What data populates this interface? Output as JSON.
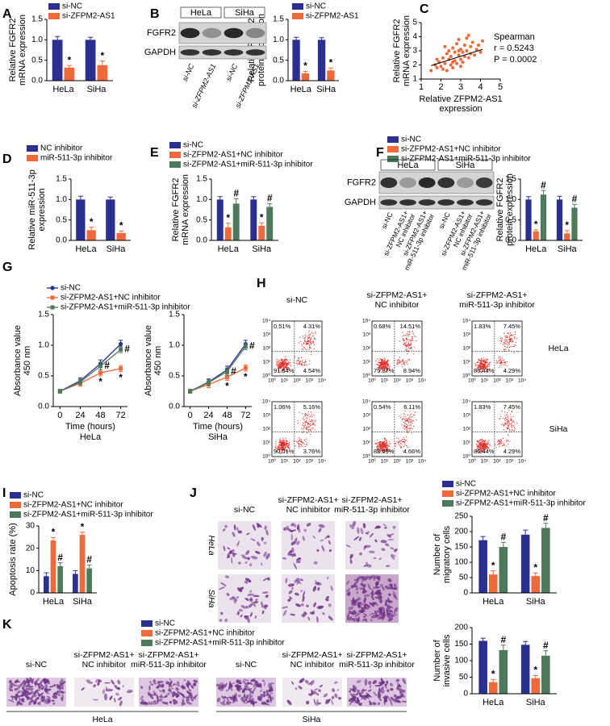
{
  "chart_data": [
    {
      "type": "bar",
      "panel": "A",
      "ylabel": "Relative FGFR2\nmRNA expression",
      "categories": [
        "HeLa",
        "SiHa"
      ],
      "series": [
        {
          "name": "si-NC",
          "color": "#2b2f8f",
          "values": [
            1.0,
            1.0
          ],
          "errors": [
            0.08,
            0.06
          ]
        },
        {
          "name": "si-ZFPM2-AS1",
          "color": "#f0693a",
          "values": [
            0.32,
            0.38
          ],
          "errors": [
            0.05,
            0.1
          ],
          "marks": [
            "*",
            "*"
          ]
        }
      ],
      "ylim": [
        0,
        1.5
      ],
      "yticks": [
        {
          "value": 0,
          "label": "0.0"
        },
        0.5,
        {
          "value": 1,
          "label": "1.0"
        },
        1.5
      ]
    },
    {
      "type": "bar",
      "panel": "B",
      "ylabel": "Relative FGFR2\nprotein expression",
      "categories": [
        "HeLa",
        "SiHa"
      ],
      "series": [
        {
          "name": "si-NC",
          "color": "#2b2f8f",
          "values": [
            1.0,
            1.0
          ],
          "errors": [
            0.06,
            0.05
          ]
        },
        {
          "name": "si-ZFPM2-AS1",
          "color": "#f0693a",
          "values": [
            0.18,
            0.25
          ],
          "errors": [
            0.05,
            0.06
          ],
          "marks": [
            "*",
            "*"
          ]
        }
      ],
      "ylim": [
        0,
        1.5
      ],
      "yticks": [
        {
          "value": 0,
          "label": "0.0"
        },
        0.5,
        {
          "value": 1,
          "label": "1.0"
        },
        1.5
      ]
    },
    {
      "type": "scatter",
      "panel": "C",
      "xlabel": "Relative ZFPM2-AS1\nexpression",
      "ylabel": "Relative FGFR2\nmRNA expression",
      "color": "#f0693a",
      "x": [
        1.5,
        1.7,
        1.8,
        1.9,
        2.0,
        2.1,
        2.1,
        2.2,
        2.3,
        2.3,
        2.4,
        2.4,
        2.5,
        2.5,
        2.6,
        2.6,
        2.7,
        2.7,
        2.8,
        2.8,
        2.9,
        2.9,
        3.0,
        3.0,
        3.1,
        3.1,
        3.2,
        3.2,
        3.3,
        3.3,
        3.4,
        3.5,
        3.5,
        3.6,
        3.7,
        3.8,
        3.9,
        4.0,
        4.1,
        2.2,
        2.6,
        3.0,
        3.4,
        1.8,
        2.9
      ],
      "y": [
        1.6,
        2.0,
        1.8,
        2.2,
        1.9,
        2.5,
        1.7,
        2.1,
        2.8,
        1.6,
        2.4,
        3.0,
        2.0,
        2.6,
        3.2,
        1.8,
        2.9,
        2.3,
        3.5,
        2.1,
        2.7,
        3.8,
        2.4,
        3.1,
        2.9,
        2.2,
        3.4,
        2.6,
        3.0,
        3.9,
        2.5,
        3.3,
        2.8,
        3.6,
        2.7,
        3.1,
        3.4,
        2.9,
        3.7,
        3.3,
        2.2,
        1.9,
        4.1,
        2.4,
        3.0
      ],
      "fit": {
        "x": [
          1.5,
          4.1
        ],
        "y": [
          1.95,
          3.1
        ],
        "color": "#000000"
      },
      "annotations": [
        "Spearman",
        "r = 0.5243",
        "P = 0.0002"
      ],
      "xlim": [
        1,
        5
      ],
      "xticks": [
        1,
        2,
        3,
        4,
        5
      ],
      "ylim": [
        1,
        5
      ],
      "yticks": [
        1,
        2,
        3,
        4,
        5
      ]
    },
    {
      "type": "bar",
      "panel": "D",
      "ylabel": "Relative miR-511-3p\nexpression",
      "categories": [
        "HeLa",
        "SiHa"
      ],
      "series": [
        {
          "name": "NC inhibitor",
          "color": "#2b2f8f",
          "values": [
            1.0,
            1.0
          ],
          "errors": [
            0.08,
            0.06
          ]
        },
        {
          "name": "miR-511-3p inhibitor",
          "color": "#f0693a",
          "values": [
            0.25,
            0.18
          ],
          "errors": [
            0.07,
            0.05
          ],
          "marks": [
            "*",
            "*"
          ]
        }
      ],
      "ylim": [
        0,
        1.5
      ],
      "yticks": [
        {
          "value": 0,
          "label": "0.0"
        },
        0.5,
        {
          "value": 1,
          "label": "1.0"
        },
        1.5
      ]
    },
    {
      "type": "bar",
      "panel": "E",
      "ylabel": "Relative FGFR2\nmRNA expression",
      "categories": [
        "HeLa",
        "SiHa"
      ],
      "series": [
        {
          "name": "si-NC",
          "color": "#2b2f8f",
          "values": [
            1.0,
            1.0
          ],
          "errors": [
            0.07,
            0.07
          ]
        },
        {
          "name": "si-ZFPM2-AS1+NC inhibitor",
          "color": "#f0693a",
          "values": [
            0.32,
            0.36
          ],
          "errors": [
            0.1,
            0.07
          ],
          "marks": [
            "*",
            "*"
          ]
        },
        {
          "name": "si-ZFPM2-AS1+miR-511-3p inhibitor",
          "color": "#4e7a5c",
          "values": [
            0.9,
            0.82
          ],
          "errors": [
            0.12,
            0.08
          ],
          "marks": [
            "#",
            "#"
          ]
        }
      ],
      "ylim": [
        0,
        1.5
      ],
      "yticks": [
        {
          "value": 0,
          "label": "0.0"
        },
        0.5,
        {
          "value": 1,
          "label": "1.0"
        },
        1.5
      ]
    },
    {
      "type": "bar",
      "panel": "F",
      "ylabel": "Relative FGFR2\nprotein expression",
      "categories": [
        "HeLa",
        "SiHa"
      ],
      "series": [
        {
          "name": "si-NC",
          "color": "#2b2f8f",
          "values": [
            1.0,
            1.0
          ],
          "errors": [
            0.07,
            0.08
          ]
        },
        {
          "name": "si-ZFPM2-AS1+NC inhibitor",
          "color": "#f0693a",
          "values": [
            0.22,
            0.17
          ],
          "errors": [
            0.04,
            0.07
          ],
          "marks": [
            "*",
            "*"
          ]
        },
        {
          "name": "si-ZFPM2-AS1+miR-511-3p inhibitor",
          "color": "#4e7a5c",
          "values": [
            1.12,
            0.8
          ],
          "errors": [
            0.1,
            0.08
          ],
          "marks": [
            "#",
            "#"
          ]
        }
      ],
      "ylim": [
        0,
        1.5
      ],
      "yticks": [
        {
          "value": 0,
          "label": "0.0"
        },
        0.5,
        {
          "value": 1,
          "label": "1.0"
        },
        1.5
      ]
    },
    {
      "type": "line",
      "panel": "G",
      "ylabel": "Absorbance value\n450 nm",
      "xlabel": "Time (hours)",
      "subtitle": "HeLa",
      "x": [
        0,
        24,
        48,
        72
      ],
      "xlim": [
        -8,
        80
      ],
      "xticks": [
        0,
        24,
        48,
        72
      ],
      "ylim": [
        0,
        1.5
      ],
      "yticks": [
        {
          "value": 0,
          "label": "0.0"
        },
        0.5,
        {
          "value": 1,
          "label": "1.0"
        },
        1.5
      ],
      "series": [
        {
          "name": "si-NC",
          "color": "#2b2f8f",
          "values": [
            0.25,
            0.42,
            0.7,
            1.02
          ],
          "errors": [
            0.03,
            0.05,
            0.06,
            0.06
          ]
        },
        {
          "name": "si-ZFPM2-AS1+NC inhibitor",
          "color": "#f0693a",
          "values": [
            0.25,
            0.38,
            0.55,
            0.62
          ],
          "errors": [
            0.03,
            0.05,
            0.05,
            0.05
          ],
          "marks": [
            null,
            null,
            "*",
            "*"
          ]
        },
        {
          "name": "si-ZFPM2-AS1+miR-511-3p inhibitor",
          "color": "#4e7a5c",
          "values": [
            0.25,
            0.4,
            0.66,
            0.93
          ],
          "errors": [
            0.03,
            0.05,
            0.06,
            0.05
          ],
          "marks": [
            null,
            null,
            "#",
            "#"
          ]
        }
      ]
    },
    {
      "type": "line",
      "ylabel": "Absorbance value\n450 nm",
      "xlabel": "Time (hours)",
      "subtitle": "SiHa",
      "x": [
        0,
        24,
        48,
        72
      ],
      "xlim": [
        -8,
        80
      ],
      "xticks": [
        0,
        24,
        48,
        72
      ],
      "ylim": [
        0,
        1.5
      ],
      "yticks": [
        {
          "value": 0,
          "label": "0.0"
        },
        0.5,
        {
          "value": 1,
          "label": "1.0"
        },
        1.5
      ],
      "series": [
        {
          "color": "#2b2f8f",
          "values": [
            0.25,
            0.4,
            0.6,
            1.02
          ],
          "errors": [
            0.03,
            0.05,
            0.06,
            0.06
          ]
        },
        {
          "color": "#f0693a",
          "values": [
            0.25,
            0.36,
            0.48,
            0.63
          ],
          "errors": [
            0.03,
            0.05,
            0.05,
            0.05
          ],
          "marks": [
            null,
            null,
            "*",
            "*"
          ]
        },
        {
          "color": "#4e7a5c",
          "values": [
            0.25,
            0.39,
            0.57,
            0.98
          ],
          "errors": [
            0.03,
            0.05,
            0.06,
            0.05
          ],
          "marks": [
            null,
            null,
            "#",
            "#"
          ]
        }
      ]
    },
    {
      "type": "bar",
      "panel": "I",
      "ylabel": "Apoptosis rate (%)",
      "categories": [
        "HeLa",
        "SiHa"
      ],
      "series": [
        {
          "name": "si-NC",
          "color": "#2b2f8f",
          "values": [
            7.5,
            8.5
          ],
          "errors": [
            1.5,
            1.5
          ]
        },
        {
          "name": "si-ZFPM2-AS1+NC inhibitor",
          "color": "#f0693a",
          "values": [
            23.5,
            26
          ],
          "errors": [
            1.3,
            1.2
          ],
          "marks": [
            "*",
            "*"
          ]
        },
        {
          "name": "si-ZFPM2-AS1+miR-511-3p inhibitor",
          "color": "#4e7a5c",
          "values": [
            12,
            11
          ],
          "errors": [
            1.5,
            1.5
          ],
          "marks": [
            "#",
            "#"
          ]
        }
      ],
      "ylim": [
        0,
        30
      ],
      "yticks": [
        0,
        10,
        20,
        30
      ]
    },
    {
      "type": "bar",
      "panel": "J",
      "ylabel": "Number of\nmigratory cells",
      "categories": [
        "HeLa",
        "SiHa"
      ],
      "series": [
        {
          "name": "si-NC",
          "color": "#2b2f8f",
          "values": [
            172,
            190
          ],
          "errors": [
            12,
            15
          ]
        },
        {
          "name": "si-ZFPM2-AS1+NC inhibitor",
          "color": "#f0693a",
          "values": [
            60,
            55
          ],
          "errors": [
            12,
            10
          ],
          "marks": [
            "*",
            "*"
          ]
        },
        {
          "name": "si-ZFPM2-AS1+miR-511-3p inhibitor",
          "color": "#4e7a5c",
          "values": [
            150,
            212
          ],
          "errors": [
            15,
            15
          ],
          "marks": [
            "#",
            "#"
          ]
        }
      ],
      "ylim": [
        0,
        250
      ],
      "yticks": [
        0,
        50,
        100,
        150,
        200,
        250
      ]
    },
    {
      "type": "bar",
      "panel": "K",
      "ylabel": "Number of\ninvasive cells",
      "categories": [
        "HeLa",
        "SiHa"
      ],
      "series": [
        {
          "name": "si-NC",
          "color": "#2b2f8f",
          "values": [
            160,
            148
          ],
          "errors": [
            8,
            10
          ]
        },
        {
          "name": "si-ZFPM2-AS1+NC inhibitor",
          "color": "#f0693a",
          "values": [
            35,
            47
          ],
          "errors": [
            8,
            8
          ],
          "marks": [
            "*",
            "*"
          ]
        },
        {
          "name": "si-ZFPM2-AS1+miR-511-3p inhibitor",
          "color": "#4e7a5c",
          "values": [
            132,
            115
          ],
          "errors": [
            15,
            15
          ],
          "marks": [
            "#",
            "#"
          ]
        }
      ],
      "ylim": [
        0,
        200
      ],
      "yticks": [
        0,
        50,
        100,
        150,
        200
      ]
    }
  ],
  "blots": [
    {
      "groups": [
        "HeLa",
        "SiHa"
      ],
      "rows": [
        "FGFR2",
        "GAPDH"
      ],
      "lanes": [
        "si-NC",
        "si-ZFPM2-AS1",
        "si-NC",
        "si-ZFPM2-AS1"
      ]
    },
    {
      "groups": [
        "HeLa",
        "SiHa"
      ],
      "rows": [
        "FGFR2",
        "GAPDH"
      ],
      "lanes": [
        "si-NC",
        "si-ZFPM2-AS1+\nNC inhibitor",
        "si-ZFPM2-AS1+\nmiR-511-3p inhibitor",
        "si-NC",
        "si-ZFPM2-AS1+\nNC inhibitor",
        "si-ZFPM2-AS1+\nmiR-511-3p inhibitor"
      ]
    }
  ],
  "flow": {
    "panel": "H",
    "columns": [
      "si-NC",
      "si-ZFPM2-AS1+\nNC inhibitor",
      "si-ZFPM2-AS1+\nmiR-511-3p inhibitor"
    ],
    "rows": [
      "HeLa",
      "SiHa"
    ],
    "axis_ticks": [
      "10⁰",
      "10¹",
      "10²",
      "10³",
      "10⁴"
    ],
    "quadrants": [
      [
        [
          "0.51%",
          "4.31%",
          "91.64%",
          "4.54%"
        ],
        [
          "0.68%",
          "14.51%",
          "75.87%",
          "8.94%"
        ],
        [
          "1.83%",
          "7.45%",
          "86.44%",
          "4.29%"
        ]
      ],
      [
        [
          "1.06%",
          "5.16%",
          "90.01%",
          "3.76%"
        ],
        [
          "0.54%",
          "6.11%",
          "88.69%",
          "4.66%"
        ],
        [
          "1.83%",
          "7.45%",
          "86.44%",
          "4.29%"
        ]
      ]
    ]
  },
  "micrographs": [
    {
      "columns": [
        "si-NC",
        "si-ZFPM2-AS1+\nNC inhibitor",
        "si-ZFPM2-AS1+\nmiR-511-3p inhibitor"
      ],
      "rows": [
        "HeLa",
        "SiHa"
      ]
    },
    {
      "columns": [
        "si-NC",
        "si-ZFPM2-AS1+\nNC inhibitor",
        "si-ZFPM2-AS1+\nmiR-511-3p inhibitor",
        "si-NC",
        "si-ZFPM2-AS1+\nNC inhibitor",
        "si-ZFPM2-AS1+\nmiR-511-3p inhibitor"
      ],
      "groups": [
        "HeLa",
        "SiHa"
      ]
    }
  ]
}
